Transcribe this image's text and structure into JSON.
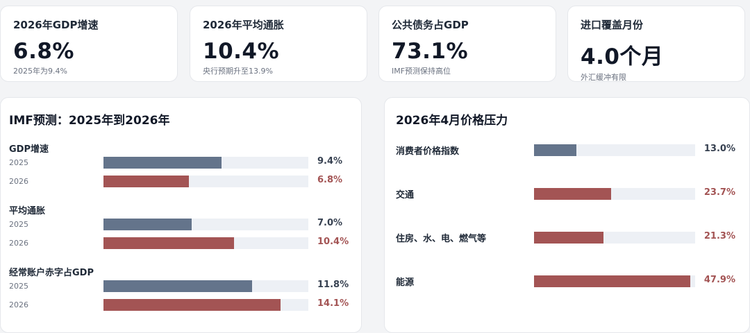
{
  "kpis": [
    {
      "label": "2026年GDP增速",
      "value": "6.8%",
      "note": "2025年为9.4%"
    },
    {
      "label": "2026年平均通胀",
      "value": "10.4%",
      "note": "央行预期升至13.9%"
    },
    {
      "label": "公共债务占GDP",
      "value": "73.1%",
      "note": "IMF预测保持高位"
    },
    {
      "label": "进口覆盖月份",
      "value": "4.0个月",
      "note": "外汇缓冲有限"
    }
  ],
  "colors": {
    "y2025": "#64748b",
    "y2026": "#a35454",
    "track": "#edf0f5"
  },
  "chart_data": [
    {
      "type": "bar",
      "title": "IMF预测：2025年到2026年",
      "groups": [
        {
          "name": "GDP增速",
          "rows": [
            {
              "year": "2025",
              "value": 9.4,
              "label": "9.4%"
            },
            {
              "year": "2026",
              "value": 6.8,
              "label": "6.8%"
            }
          ]
        },
        {
          "name": "平均通胀",
          "rows": [
            {
              "year": "2025",
              "value": 7.0,
              "label": "7.0%"
            },
            {
              "year": "2026",
              "value": 10.4,
              "label": "10.4%"
            }
          ]
        },
        {
          "name": "经常账户赤字占GDP",
          "rows": [
            {
              "year": "2025",
              "value": 11.8,
              "label": "11.8%"
            },
            {
              "year": "2026",
              "value": 14.1,
              "label": "14.1%"
            }
          ]
        }
      ],
      "xlim": [
        0,
        16.3
      ]
    },
    {
      "type": "bar",
      "title": "2026年4月价格压力",
      "categories": [
        "消费者价格指数",
        "交通",
        "住房、水、电、燃气等",
        "能源"
      ],
      "values": [
        13.0,
        23.7,
        21.3,
        47.9
      ],
      "labels": [
        "13.0%",
        "23.7%",
        "21.3%",
        "47.9%"
      ],
      "xlim": [
        0,
        49.5
      ]
    }
  ]
}
